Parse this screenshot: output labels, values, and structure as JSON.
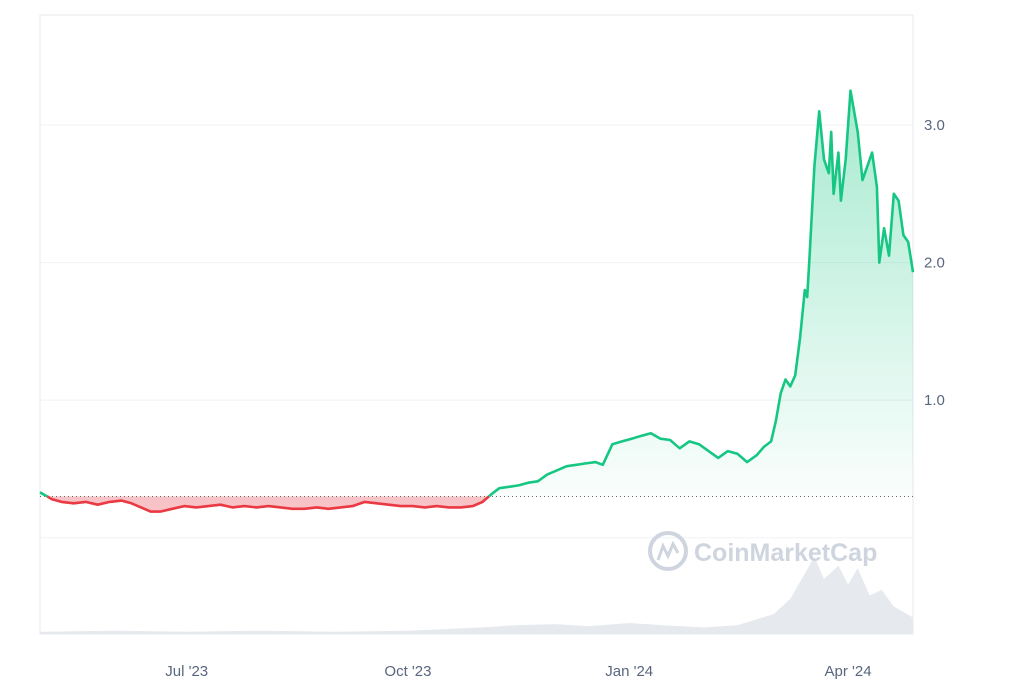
{
  "chart_data": {
    "type": "area",
    "title": "",
    "xlabel": "",
    "ylabel": "",
    "x_range": [
      "2023-05-01",
      "2024-04-28"
    ],
    "ylim": [
      -0.7,
      3.8
    ],
    "y_ticks": [
      {
        "value": 3.0,
        "label": "3.0"
      },
      {
        "value": 2.0,
        "label": "2.0"
      },
      {
        "value": 1.0,
        "label": "1.0"
      }
    ],
    "x_ticks": [
      {
        "date": "2023-07-01",
        "label": "Jul '23"
      },
      {
        "date": "2023-10-01",
        "label": "Oct '23"
      },
      {
        "date": "2024-01-01",
        "label": "Jan '24"
      },
      {
        "date": "2024-04-01",
        "label": "Apr '24"
      }
    ],
    "baseline": 0.3,
    "series": [
      {
        "values": [
          [
            "2023-05-01",
            0.33
          ],
          [
            "2023-05-03",
            0.31
          ],
          [
            "2023-05-06",
            0.28
          ],
          [
            "2023-05-10",
            0.26
          ],
          [
            "2023-05-15",
            0.25
          ],
          [
            "2023-05-20",
            0.26
          ],
          [
            "2023-05-25",
            0.24
          ],
          [
            "2023-05-30",
            0.26
          ],
          [
            "2023-06-04",
            0.27
          ],
          [
            "2023-06-08",
            0.25
          ],
          [
            "2023-06-12",
            0.22
          ],
          [
            "2023-06-16",
            0.19
          ],
          [
            "2023-06-20",
            0.19
          ],
          [
            "2023-06-25",
            0.21
          ],
          [
            "2023-06-30",
            0.23
          ],
          [
            "2023-07-05",
            0.22
          ],
          [
            "2023-07-10",
            0.23
          ],
          [
            "2023-07-15",
            0.24
          ],
          [
            "2023-07-20",
            0.22
          ],
          [
            "2023-07-25",
            0.23
          ],
          [
            "2023-07-30",
            0.22
          ],
          [
            "2023-08-04",
            0.23
          ],
          [
            "2023-08-09",
            0.22
          ],
          [
            "2023-08-14",
            0.21
          ],
          [
            "2023-08-19",
            0.21
          ],
          [
            "2023-08-24",
            0.22
          ],
          [
            "2023-08-29",
            0.21
          ],
          [
            "2023-09-03",
            0.22
          ],
          [
            "2023-09-08",
            0.23
          ],
          [
            "2023-09-13",
            0.26
          ],
          [
            "2023-09-18",
            0.25
          ],
          [
            "2023-09-23",
            0.24
          ],
          [
            "2023-09-28",
            0.23
          ],
          [
            "2023-10-03",
            0.23
          ],
          [
            "2023-10-08",
            0.22
          ],
          [
            "2023-10-13",
            0.23
          ],
          [
            "2023-10-18",
            0.22
          ],
          [
            "2023-10-23",
            0.22
          ],
          [
            "2023-10-28",
            0.23
          ],
          [
            "2023-11-01",
            0.26
          ],
          [
            "2023-11-05",
            0.32
          ],
          [
            "2023-11-08",
            0.36
          ],
          [
            "2023-11-12",
            0.37
          ],
          [
            "2023-11-16",
            0.38
          ],
          [
            "2023-11-20",
            0.4
          ],
          [
            "2023-11-24",
            0.41
          ],
          [
            "2023-11-28",
            0.46
          ],
          [
            "2023-12-02",
            0.49
          ],
          [
            "2023-12-06",
            0.52
          ],
          [
            "2023-12-10",
            0.53
          ],
          [
            "2023-12-14",
            0.54
          ],
          [
            "2023-12-18",
            0.55
          ],
          [
            "2023-12-21",
            0.53
          ],
          [
            "2023-12-25",
            0.68
          ],
          [
            "2023-12-29",
            0.7
          ],
          [
            "2024-01-02",
            0.72
          ],
          [
            "2024-01-06",
            0.74
          ],
          [
            "2024-01-10",
            0.76
          ],
          [
            "2024-01-14",
            0.72
          ],
          [
            "2024-01-18",
            0.71
          ],
          [
            "2024-01-22",
            0.65
          ],
          [
            "2024-01-26",
            0.7
          ],
          [
            "2024-01-30",
            0.68
          ],
          [
            "2024-02-03",
            0.63
          ],
          [
            "2024-02-07",
            0.58
          ],
          [
            "2024-02-11",
            0.63
          ],
          [
            "2024-02-15",
            0.61
          ],
          [
            "2024-02-19",
            0.55
          ],
          [
            "2024-02-23",
            0.6
          ],
          [
            "2024-02-26",
            0.66
          ],
          [
            "2024-02-29",
            0.7
          ],
          [
            "2024-03-02",
            0.85
          ],
          [
            "2024-03-04",
            1.05
          ],
          [
            "2024-03-06",
            1.15
          ],
          [
            "2024-03-08",
            1.1
          ],
          [
            "2024-03-10",
            1.18
          ],
          [
            "2024-03-12",
            1.45
          ],
          [
            "2024-03-14",
            1.8
          ],
          [
            "2024-03-15",
            1.75
          ],
          [
            "2024-03-16",
            2.05
          ],
          [
            "2024-03-18",
            2.7
          ],
          [
            "2024-03-20",
            3.1
          ],
          [
            "2024-03-22",
            2.75
          ],
          [
            "2024-03-24",
            2.65
          ],
          [
            "2024-03-25",
            2.95
          ],
          [
            "2024-03-26",
            2.5
          ],
          [
            "2024-03-28",
            2.8
          ],
          [
            "2024-03-29",
            2.45
          ],
          [
            "2024-03-31",
            2.75
          ],
          [
            "2024-04-02",
            3.25
          ],
          [
            "2024-04-03",
            3.15
          ],
          [
            "2024-04-05",
            2.95
          ],
          [
            "2024-04-07",
            2.6
          ],
          [
            "2024-04-09",
            2.7
          ],
          [
            "2024-04-11",
            2.8
          ],
          [
            "2024-04-13",
            2.55
          ],
          [
            "2024-04-14",
            2.0
          ],
          [
            "2024-04-16",
            2.25
          ],
          [
            "2024-04-18",
            2.05
          ],
          [
            "2024-04-20",
            2.5
          ],
          [
            "2024-04-22",
            2.45
          ],
          [
            "2024-04-24",
            2.2
          ],
          [
            "2024-04-26",
            2.15
          ],
          [
            "2024-04-28",
            1.93
          ]
        ]
      }
    ],
    "volume": [
      [
        "2023-05-01",
        0.02
      ],
      [
        "2023-06-01",
        0.03
      ],
      [
        "2023-07-01",
        0.02
      ],
      [
        "2023-08-01",
        0.03
      ],
      [
        "2023-09-01",
        0.02
      ],
      [
        "2023-10-01",
        0.03
      ],
      [
        "2023-11-01",
        0.06
      ],
      [
        "2023-11-15",
        0.08
      ],
      [
        "2023-12-01",
        0.09
      ],
      [
        "2023-12-15",
        0.07
      ],
      [
        "2024-01-01",
        0.1
      ],
      [
        "2024-01-15",
        0.08
      ],
      [
        "2024-02-01",
        0.06
      ],
      [
        "2024-02-15",
        0.08
      ],
      [
        "2024-03-01",
        0.18
      ],
      [
        "2024-03-08",
        0.32
      ],
      [
        "2024-03-14",
        0.55
      ],
      [
        "2024-03-18",
        0.7
      ],
      [
        "2024-03-22",
        0.5
      ],
      [
        "2024-03-28",
        0.62
      ],
      [
        "2024-04-01",
        0.45
      ],
      [
        "2024-04-05",
        0.6
      ],
      [
        "2024-04-10",
        0.35
      ],
      [
        "2024-04-15",
        0.4
      ],
      [
        "2024-04-20",
        0.25
      ],
      [
        "2024-04-28",
        0.15
      ]
    ],
    "colors": {
      "up_line": "#16c784",
      "down_line": "#ea3943",
      "down_fill": "#f6b8bc",
      "baseline": "#666666",
      "grid": "#eff2f5",
      "volume": "#e6e9ee"
    },
    "grid": true,
    "watermark": "CoinMarketCap"
  }
}
